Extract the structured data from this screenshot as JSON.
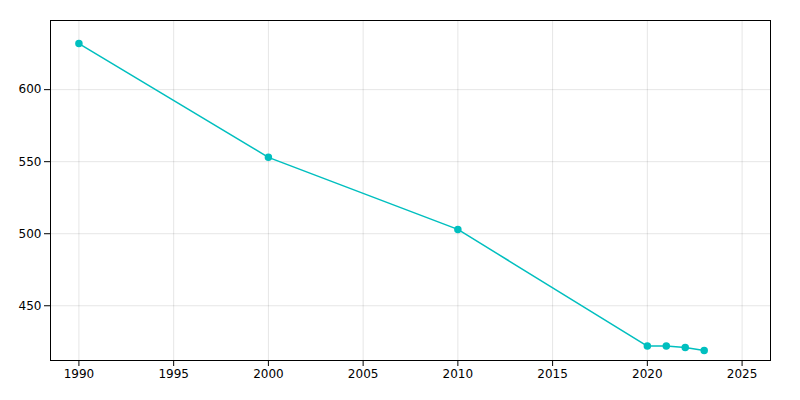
{
  "chart_data": {
    "type": "line",
    "x": [
      1990,
      2000,
      2010,
      2020,
      2021,
      2022,
      2023
    ],
    "values": [
      632,
      553,
      503,
      422,
      422,
      421,
      419
    ],
    "color": "#00BFBF",
    "marker": "circle",
    "xlim": [
      1988.5,
      2026.5
    ],
    "ylim": [
      412,
      648
    ],
    "xticks": [
      1990,
      1995,
      2000,
      2005,
      2010,
      2015,
      2020,
      2025
    ],
    "yticks": [
      450,
      500,
      550,
      600
    ],
    "grid": true
  }
}
